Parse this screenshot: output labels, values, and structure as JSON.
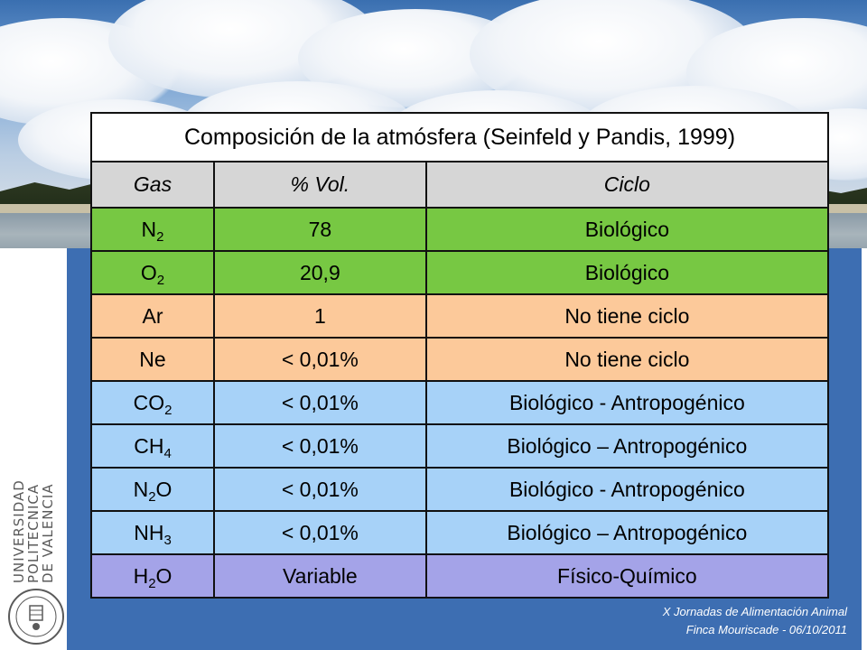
{
  "table": {
    "title": "Composición de la atmósfera (Seinfeld y Pandis, 1999)",
    "headers": {
      "gas": "Gas",
      "vol": "% Vol.",
      "ciclo": "Ciclo"
    },
    "rows": [
      {
        "gas": "N",
        "sub": "2",
        "post": "",
        "vol": "78",
        "ciclo": "Biológico"
      },
      {
        "gas": "O",
        "sub": "2",
        "post": "",
        "vol": "20,9",
        "ciclo": "Biológico"
      },
      {
        "gas": "Ar",
        "sub": "",
        "post": "",
        "vol": "1",
        "ciclo": "No tiene ciclo"
      },
      {
        "gas": "Ne",
        "sub": "",
        "post": "",
        "vol": "< 0,01%",
        "ciclo": "No tiene ciclo"
      },
      {
        "gas": "CO",
        "sub": "2",
        "post": "",
        "vol": "< 0,01%",
        "ciclo": "Biológico - Antropogénico"
      },
      {
        "gas": "CH",
        "sub": "4",
        "post": "",
        "vol": "< 0,01%",
        "ciclo": "Biológico – Antropogénico"
      },
      {
        "gas": "N",
        "sub": "2",
        "post": "O",
        "vol": "< 0,01%",
        "ciclo": "Biológico - Antropogénico"
      },
      {
        "gas": "NH",
        "sub": "3",
        "post": "",
        "vol": "< 0,01%",
        "ciclo": "Biológico – Antropogénico"
      },
      {
        "gas": "H",
        "sub": "2",
        "post": "O",
        "vol": "Variable",
        "ciclo": "Físico-Químico"
      }
    ]
  },
  "colors": {
    "green": "#77c843",
    "peach": "#fcc99a",
    "blue": "#a7d2f8",
    "violet": "#a4a3e8",
    "header_gray": "#d6d6d6",
    "panel_blue": "#3d6eb2"
  },
  "logo": {
    "lines": [
      "UNIVERSIDAD",
      "POLITECNICA",
      "DE VALENCIA"
    ]
  },
  "footer": {
    "line1": "X Jornadas de Alimentación Animal",
    "line2": "Finca Mouriscade  -  06/10/2011"
  }
}
